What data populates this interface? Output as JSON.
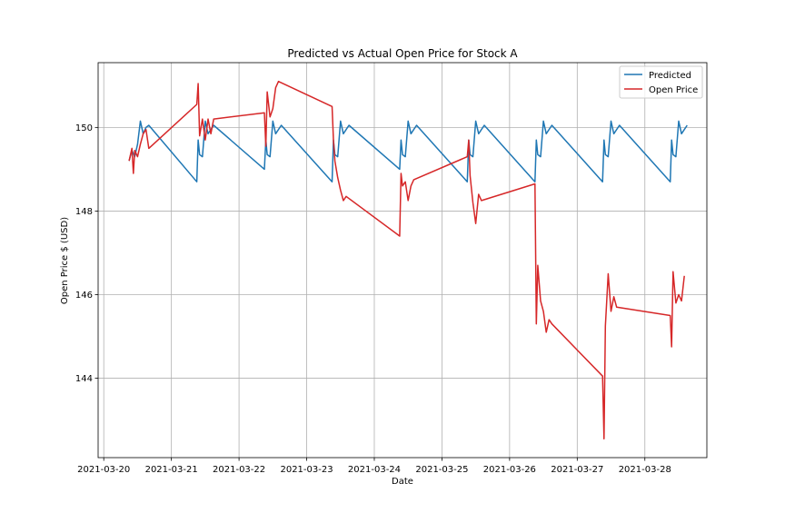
{
  "chart_data": {
    "type": "line",
    "title": "Predicted vs Actual Open Price for Stock A",
    "xlabel": "Date",
    "ylabel": "Open Price $ (USD)",
    "xlim": [
      "2021-03-19T22:00",
      "2021-03-28T22:00"
    ],
    "ylim": [
      142.1,
      151.55
    ],
    "x_ticks": [
      "2021-03-20",
      "2021-03-21",
      "2021-03-22",
      "2021-03-23",
      "2021-03-24",
      "2021-03-25",
      "2021-03-26",
      "2021-03-27",
      "2021-03-28"
    ],
    "y_ticks": [
      144,
      146,
      148,
      150
    ],
    "grid": true,
    "legend_position": "top-right",
    "series": [
      {
        "name": "Predicted",
        "color": "#1f77b4",
        "points": [
          [
            "2021-03-20T09:00",
            149.2
          ],
          [
            "2021-03-20T10:00",
            149.45
          ],
          [
            "2021-03-20T11:00",
            149.3
          ],
          [
            "2021-03-20T12:00",
            149.6
          ],
          [
            "2021-03-20T13:00",
            150.15
          ],
          [
            "2021-03-20T14:00",
            149.85
          ],
          [
            "2021-03-20T15:00",
            150.0
          ],
          [
            "2021-03-20T16:00",
            150.05
          ],
          [
            "2021-03-21T09:00",
            148.7
          ],
          [
            "2021-03-21T09:30",
            149.7
          ],
          [
            "2021-03-21T10:00",
            149.35
          ],
          [
            "2021-03-21T11:00",
            149.3
          ],
          [
            "2021-03-21T12:00",
            150.15
          ],
          [
            "2021-03-21T13:00",
            149.85
          ],
          [
            "2021-03-21T15:00",
            150.05
          ],
          [
            "2021-03-22T09:00",
            149.0
          ],
          [
            "2021-03-22T09:30",
            149.7
          ],
          [
            "2021-03-22T10:00",
            149.35
          ],
          [
            "2021-03-22T11:00",
            149.3
          ],
          [
            "2021-03-22T12:00",
            150.15
          ],
          [
            "2021-03-22T13:00",
            149.85
          ],
          [
            "2021-03-22T15:00",
            150.05
          ],
          [
            "2021-03-23T09:00",
            148.7
          ],
          [
            "2021-03-23T09:30",
            149.7
          ],
          [
            "2021-03-23T10:00",
            149.35
          ],
          [
            "2021-03-23T11:00",
            149.3
          ],
          [
            "2021-03-23T12:00",
            150.15
          ],
          [
            "2021-03-23T13:00",
            149.85
          ],
          [
            "2021-03-23T15:00",
            150.05
          ],
          [
            "2021-03-24T09:00",
            149.0
          ],
          [
            "2021-03-24T09:30",
            149.7
          ],
          [
            "2021-03-24T10:00",
            149.35
          ],
          [
            "2021-03-24T11:00",
            149.3
          ],
          [
            "2021-03-24T12:00",
            150.15
          ],
          [
            "2021-03-24T13:00",
            149.85
          ],
          [
            "2021-03-24T15:00",
            150.05
          ],
          [
            "2021-03-25T09:00",
            148.7
          ],
          [
            "2021-03-25T09:30",
            149.7
          ],
          [
            "2021-03-25T10:00",
            149.35
          ],
          [
            "2021-03-25T11:00",
            149.3
          ],
          [
            "2021-03-25T12:00",
            150.15
          ],
          [
            "2021-03-25T13:00",
            149.85
          ],
          [
            "2021-03-25T15:00",
            150.05
          ],
          [
            "2021-03-26T09:00",
            148.7
          ],
          [
            "2021-03-26T09:30",
            149.7
          ],
          [
            "2021-03-26T10:00",
            149.35
          ],
          [
            "2021-03-26T11:00",
            149.3
          ],
          [
            "2021-03-26T12:00",
            150.15
          ],
          [
            "2021-03-26T13:00",
            149.85
          ],
          [
            "2021-03-26T15:00",
            150.05
          ],
          [
            "2021-03-27T09:00",
            148.7
          ],
          [
            "2021-03-27T09:30",
            149.7
          ],
          [
            "2021-03-27T10:00",
            149.35
          ],
          [
            "2021-03-27T11:00",
            149.3
          ],
          [
            "2021-03-27T12:00",
            150.15
          ],
          [
            "2021-03-27T13:00",
            149.85
          ],
          [
            "2021-03-27T15:00",
            150.05
          ],
          [
            "2021-03-28T09:00",
            148.7
          ],
          [
            "2021-03-28T09:30",
            149.7
          ],
          [
            "2021-03-28T10:00",
            149.35
          ],
          [
            "2021-03-28T11:00",
            149.3
          ],
          [
            "2021-03-28T12:00",
            150.15
          ],
          [
            "2021-03-28T13:00",
            149.85
          ],
          [
            "2021-03-28T15:00",
            150.05
          ]
        ]
      },
      {
        "name": "Open Price",
        "color": "#d62728",
        "points": [
          [
            "2021-03-20T09:00",
            149.2
          ],
          [
            "2021-03-20T10:00",
            149.5
          ],
          [
            "2021-03-20T10:30",
            148.9
          ],
          [
            "2021-03-20T11:00",
            149.45
          ],
          [
            "2021-03-20T12:00",
            149.3
          ],
          [
            "2021-03-20T13:00",
            149.6
          ],
          [
            "2021-03-20T14:00",
            149.85
          ],
          [
            "2021-03-20T15:00",
            149.95
          ],
          [
            "2021-03-20T16:00",
            149.5
          ],
          [
            "2021-03-21T09:00",
            150.55
          ],
          [
            "2021-03-21T09:30",
            151.05
          ],
          [
            "2021-03-21T10:00",
            149.8
          ],
          [
            "2021-03-21T11:00",
            150.2
          ],
          [
            "2021-03-21T12:00",
            149.7
          ],
          [
            "2021-03-21T13:00",
            150.2
          ],
          [
            "2021-03-21T14:00",
            149.85
          ],
          [
            "2021-03-21T15:00",
            150.2
          ],
          [
            "2021-03-22T09:00",
            150.35
          ],
          [
            "2021-03-22T09:30",
            149.55
          ],
          [
            "2021-03-22T10:00",
            150.85
          ],
          [
            "2021-03-22T11:00",
            150.25
          ],
          [
            "2021-03-22T12:00",
            150.45
          ],
          [
            "2021-03-22T13:00",
            150.95
          ],
          [
            "2021-03-22T14:00",
            151.1
          ],
          [
            "2021-03-23T09:00",
            150.5
          ],
          [
            "2021-03-23T09:30",
            149.7
          ],
          [
            "2021-03-23T10:00",
            149.2
          ],
          [
            "2021-03-23T11:00",
            148.8
          ],
          [
            "2021-03-23T12:00",
            148.5
          ],
          [
            "2021-03-23T13:00",
            148.25
          ],
          [
            "2021-03-23T14:00",
            148.35
          ],
          [
            "2021-03-24T09:00",
            147.4
          ],
          [
            "2021-03-24T09:30",
            148.9
          ],
          [
            "2021-03-24T10:00",
            148.6
          ],
          [
            "2021-03-24T11:00",
            148.7
          ],
          [
            "2021-03-24T12:00",
            148.25
          ],
          [
            "2021-03-24T13:00",
            148.6
          ],
          [
            "2021-03-24T14:00",
            148.75
          ],
          [
            "2021-03-25T09:00",
            149.3
          ],
          [
            "2021-03-25T09:30",
            149.7
          ],
          [
            "2021-03-25T10:00",
            148.85
          ],
          [
            "2021-03-25T11:00",
            148.2
          ],
          [
            "2021-03-25T12:00",
            147.7
          ],
          [
            "2021-03-25T13:00",
            148.4
          ],
          [
            "2021-03-25T14:00",
            148.25
          ],
          [
            "2021-03-26T09:00",
            148.65
          ],
          [
            "2021-03-26T09:30",
            145.3
          ],
          [
            "2021-03-26T10:00",
            146.7
          ],
          [
            "2021-03-26T11:00",
            145.85
          ],
          [
            "2021-03-26T12:00",
            145.6
          ],
          [
            "2021-03-26T13:00",
            145.1
          ],
          [
            "2021-03-26T14:00",
            145.4
          ],
          [
            "2021-03-26T15:00",
            145.3
          ],
          [
            "2021-03-27T09:00",
            144.05
          ],
          [
            "2021-03-27T09:30",
            142.55
          ],
          [
            "2021-03-27T10:00",
            145.25
          ],
          [
            "2021-03-27T11:00",
            146.5
          ],
          [
            "2021-03-27T12:00",
            145.6
          ],
          [
            "2021-03-27T13:00",
            145.95
          ],
          [
            "2021-03-27T14:00",
            145.7
          ],
          [
            "2021-03-28T09:00",
            145.5
          ],
          [
            "2021-03-28T09:30",
            144.75
          ],
          [
            "2021-03-28T10:00",
            146.55
          ],
          [
            "2021-03-28T11:00",
            145.8
          ],
          [
            "2021-03-28T12:00",
            146.0
          ],
          [
            "2021-03-28T13:00",
            145.85
          ],
          [
            "2021-03-28T14:00",
            146.45
          ]
        ]
      }
    ]
  }
}
